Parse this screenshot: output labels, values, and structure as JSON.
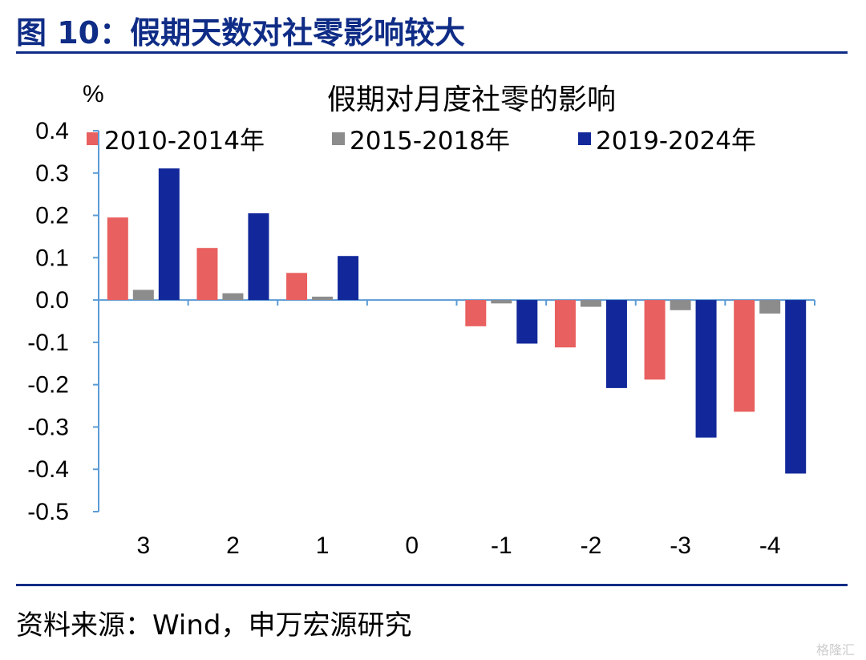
{
  "figure_title": "图 10：假期天数对社零影响较大",
  "source": "资料来源：Wind，申万宏源研究",
  "watermark": "格隆汇",
  "chart_data": {
    "type": "bar",
    "title": "假期对月度社零的影响",
    "ylabel": "%",
    "xlabel": "",
    "ylim": [
      -0.5,
      0.4
    ],
    "yticks": [
      "0.4",
      "0.3",
      "0.2",
      "0.1",
      "0.0",
      "-0.1",
      "-0.2",
      "-0.3",
      "-0.4",
      "-0.5"
    ],
    "categories": [
      "3",
      "2",
      "1",
      "0",
      "-1",
      "-2",
      "-3",
      "-4"
    ],
    "legend_position": "top",
    "series": [
      {
        "name": "2010-2014年",
        "color": "#e8605f",
        "values": [
          0.195,
          0.123,
          0.064,
          0,
          -0.062,
          -0.112,
          -0.188,
          -0.264
        ]
      },
      {
        "name": "2015-2018年",
        "color": "#8c8c8c",
        "values": [
          0.024,
          0.016,
          0.008,
          0,
          -0.008,
          -0.016,
          -0.024,
          -0.032
        ]
      },
      {
        "name": "2019-2024年",
        "color": "#12289a",
        "values": [
          0.311,
          0.205,
          0.104,
          0,
          -0.103,
          -0.208,
          -0.325,
          -0.41
        ]
      }
    ]
  }
}
